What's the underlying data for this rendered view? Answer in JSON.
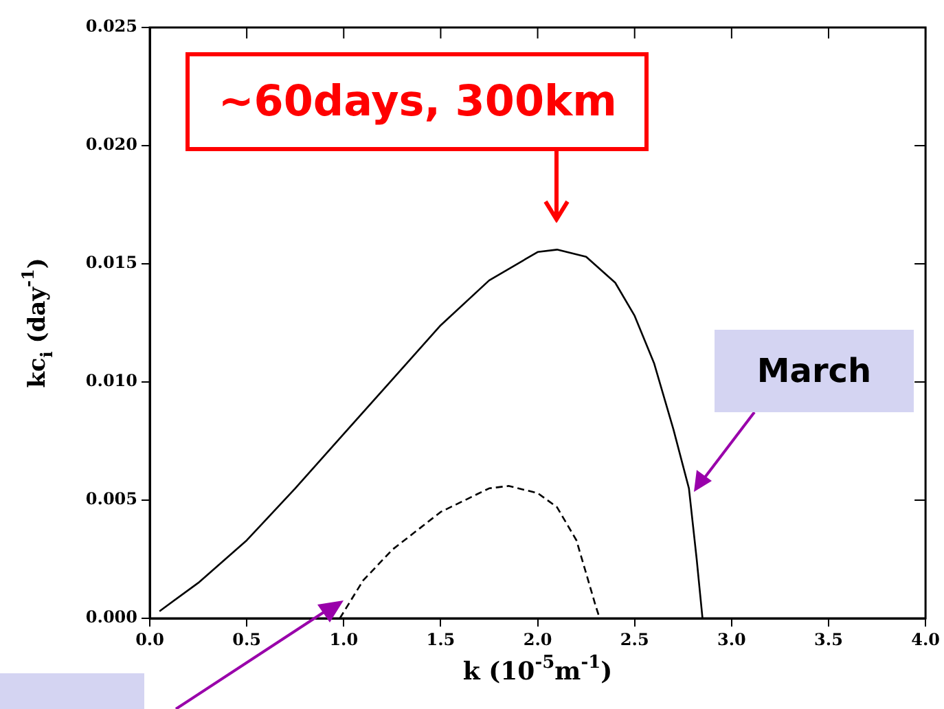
{
  "chart_data": {
    "type": "line",
    "xlabel": "k (10$^{-5}$m$^{-1}$)",
    "ylabel": "kc$_{i}$ (day$^{-1}$)",
    "xlim": [
      0,
      4
    ],
    "xticks": [
      {
        "value": 0,
        "label": "0.0"
      },
      {
        "value": 0.5,
        "label": "0.5"
      },
      {
        "value": 1,
        "label": "1.0"
      },
      {
        "value": 1.5,
        "label": "1.5"
      },
      {
        "value": 2,
        "label": "2.0"
      },
      {
        "value": 2.5,
        "label": "2.5"
      },
      {
        "value": 3,
        "label": "3.0"
      },
      {
        "value": 3.5,
        "label": "3.5"
      },
      {
        "value": 4,
        "label": "4.0"
      }
    ],
    "ylim": [
      0,
      0.025
    ],
    "yticks": [
      {
        "value": 0,
        "label": "0.000"
      },
      {
        "value": 0.005,
        "label": "0.005"
      },
      {
        "value": 0.01,
        "label": "0.010"
      },
      {
        "value": 0.015,
        "label": "0.015"
      },
      {
        "value": 0.02,
        "label": "0.020"
      },
      {
        "value": 0.025,
        "label": "0.025"
      }
    ],
    "series": [
      {
        "color": "#000000",
        "line_style": "solid",
        "x": [
          0.05,
          0.25,
          0.5,
          0.75,
          1.0,
          1.25,
          1.5,
          1.75,
          2.0,
          2.1,
          2.25,
          2.4,
          2.5,
          2.6,
          2.7,
          2.78,
          2.82,
          2.85
        ],
        "values": [
          0.0003,
          0.0015,
          0.0033,
          0.0055,
          0.0078,
          0.0101,
          0.0124,
          0.0143,
          0.0155,
          0.0156,
          0.0153,
          0.0142,
          0.0128,
          0.0108,
          0.008,
          0.0055,
          0.0025,
          0.0
        ]
      },
      {
        "color": "#000000",
        "line_style": "dashed",
        "x": [
          0.98,
          1.1,
          1.25,
          1.5,
          1.75,
          1.85,
          2.0,
          2.1,
          2.2,
          2.3,
          2.32
        ],
        "values": [
          0.0,
          0.0016,
          0.0029,
          0.0045,
          0.0055,
          0.0056,
          0.0053,
          0.0047,
          0.0033,
          0.0005,
          0.0
        ]
      }
    ],
    "marker": "none",
    "grid": false,
    "legend": false,
    "annotations": [
      {
        "text": "~60days, 300km",
        "x": 2.1,
        "y": 0.0156
      },
      "March"
    ]
  }
}
